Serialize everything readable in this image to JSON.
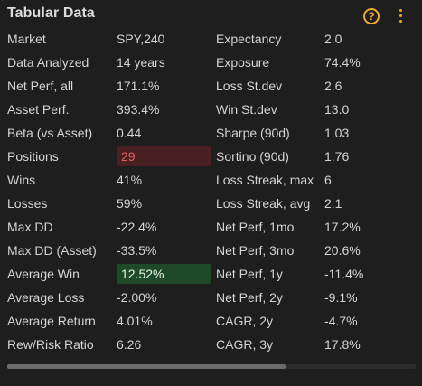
{
  "header": {
    "title": "Tabular Data",
    "help_icon": "?",
    "help_icon_name": "help-circle-icon",
    "menu_icon_name": "kebab-menu-icon"
  },
  "colors": {
    "accent": "#f0a92c",
    "negative_highlight": "#4a1f22",
    "negative_text": "#e0615e",
    "positive_highlight": "#1f4a2a",
    "background": "#1e1e1e",
    "text": "#d4d4d4"
  },
  "rows": [
    {
      "label1": "Market",
      "value1": "SPY,240",
      "label2": "Expectancy",
      "value2": "2.0"
    },
    {
      "label1": "Data Analyzed",
      "value1": "14 years",
      "label2": "Exposure",
      "value2": "74.4%"
    },
    {
      "label1": "Net Perf, all",
      "value1": "171.1%",
      "label2": "Loss St.dev",
      "value2": "2.6"
    },
    {
      "label1": "Asset Perf.",
      "value1": "393.4%",
      "label2": "Win St.dev",
      "value2": "13.0"
    },
    {
      "label1": "Beta (vs Asset)",
      "value1": "0.44",
      "label2": "Sharpe (90d)",
      "value2": "1.03"
    },
    {
      "label1": "Positions",
      "value1": "29",
      "label2": "Sortino (90d)",
      "value2": "1.76",
      "highlight": "negative"
    },
    {
      "label1": "Wins",
      "value1": "41%",
      "label2": "Loss Streak, max",
      "value2": "6"
    },
    {
      "label1": "Losses",
      "value1": "59%",
      "label2": "Loss Streak, avg",
      "value2": "2.1"
    },
    {
      "label1": "Max DD",
      "value1": "-22.4%",
      "label2": "Net Perf, 1mo",
      "value2": "17.2%"
    },
    {
      "label1": "Max DD (Asset)",
      "value1": "-33.5%",
      "label2": "Net Perf, 3mo",
      "value2": "20.6%"
    },
    {
      "label1": "Average Win",
      "value1": "12.52%",
      "label2": "Net Perf, 1y",
      "value2": "-11.4%",
      "highlight": "positive"
    },
    {
      "label1": "Average Loss",
      "value1": "-2.00%",
      "label2": "Net Perf, 2y",
      "value2": "-9.1%"
    },
    {
      "label1": "Average Return",
      "value1": "4.01%",
      "label2": "CAGR, 2y",
      "value2": "-4.7%"
    },
    {
      "label1": "Rew/Risk Ratio",
      "value1": "6.26",
      "label2": "CAGR, 3y",
      "value2": "17.8%"
    }
  ],
  "scrollbar": {
    "position_fraction": 0.0,
    "visible_fraction": 0.68
  }
}
